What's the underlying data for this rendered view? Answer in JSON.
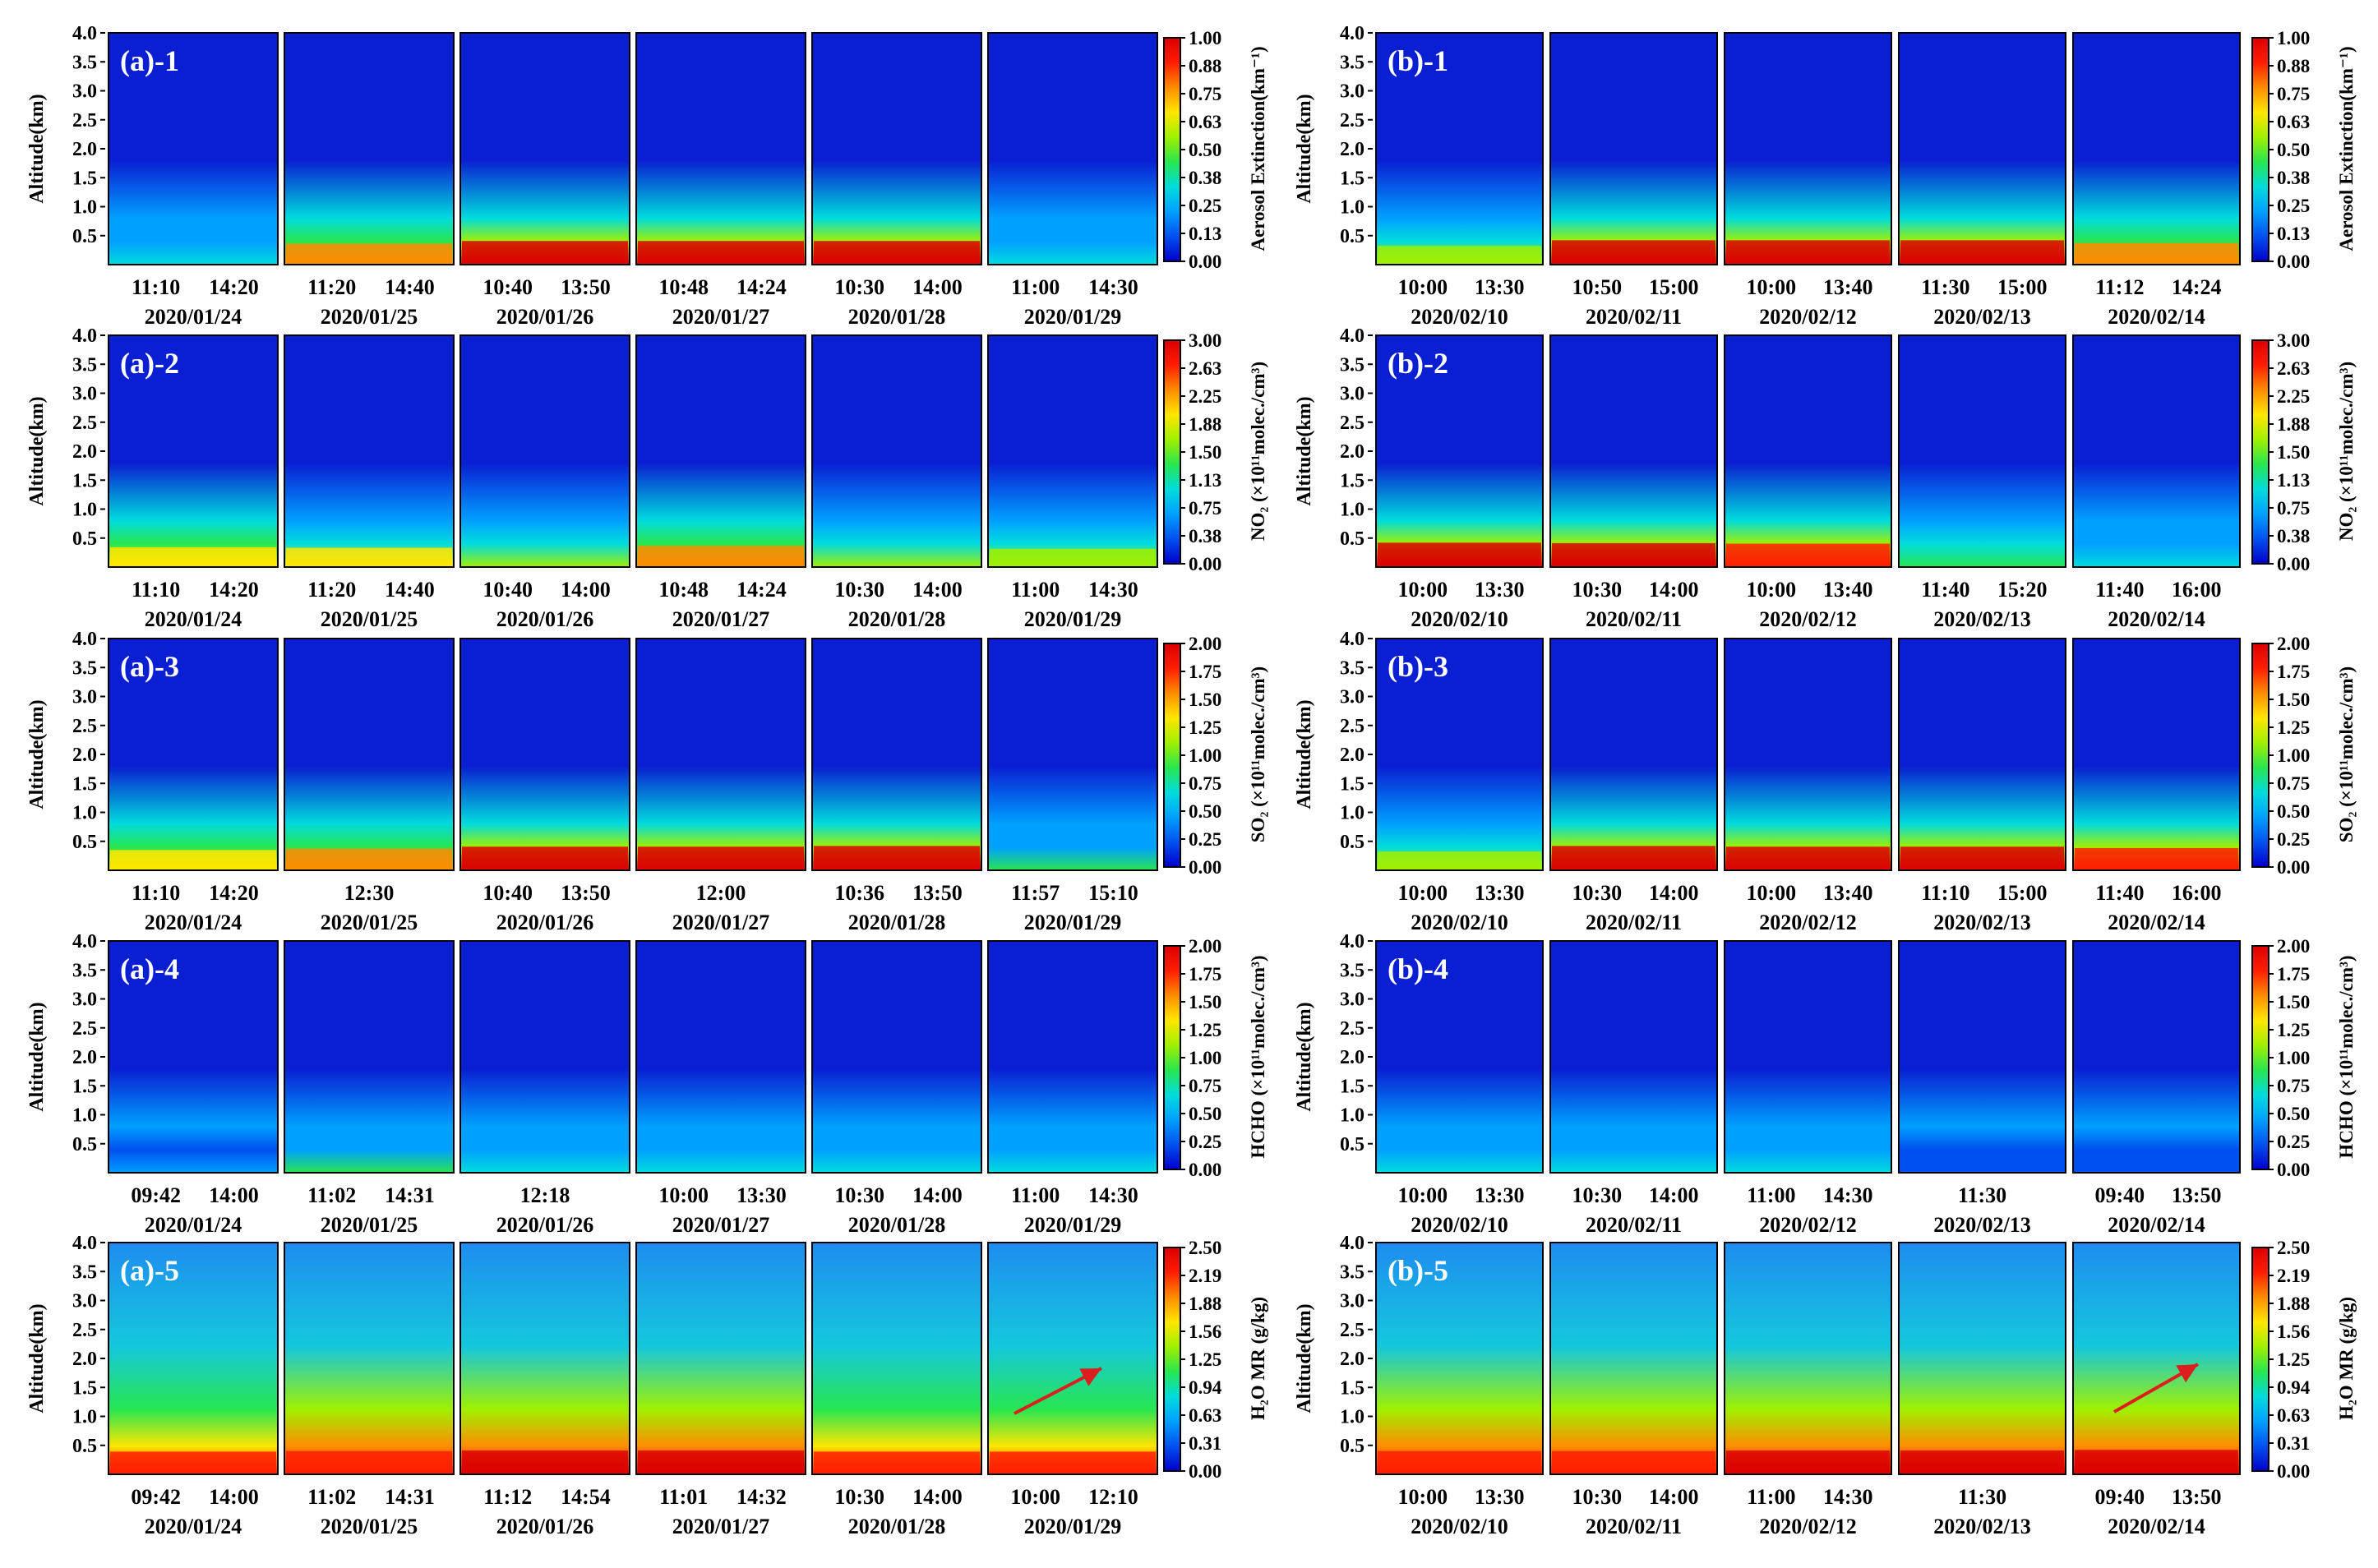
{
  "figure": {
    "y_axis_label": "Altitude(km)",
    "y_ticks": [
      "4.0",
      "3.5",
      "3.0",
      "2.5",
      "2.0",
      "1.5",
      "1.0",
      "0.5"
    ],
    "columns": [
      {
        "id": "a",
        "dates": [
          "2020/01/24",
          "2020/01/25",
          "2020/01/26",
          "2020/01/27",
          "2020/01/28",
          "2020/01/29"
        ],
        "rows": [
          {
            "label": "(a)-1",
            "species": "aerosol",
            "times": [
              [
                "11:10",
                "14:20"
              ],
              [
                "11:20",
                "14:40"
              ],
              [
                "10:40",
                "13:50"
              ],
              [
                "10:48",
                "14:24"
              ],
              [
                "10:30",
                "14:00"
              ],
              [
                "11:00",
                "14:30"
              ]
            ]
          },
          {
            "label": "(a)-2",
            "species": "no2",
            "times": [
              [
                "11:10",
                "14:20"
              ],
              [
                "11:20",
                "14:40"
              ],
              [
                "10:40",
                "14:00"
              ],
              [
                "10:48",
                "14:24"
              ],
              [
                "10:30",
                "14:00"
              ],
              [
                "11:00",
                "14:30"
              ]
            ]
          },
          {
            "label": "(a)-3",
            "species": "so2",
            "times": [
              [
                "11:10",
                "14:20"
              ],
              [
                "12:30"
              ],
              [
                "10:40",
                "13:50"
              ],
              [
                "12:00"
              ],
              [
                "10:36",
                "13:50"
              ],
              [
                "11:57",
                "15:10"
              ]
            ]
          },
          {
            "label": "(a)-4",
            "species": "hcho",
            "times": [
              [
                "09:42",
                "14:00"
              ],
              [
                "11:02",
                "14:31"
              ],
              [
                "12:18"
              ],
              [
                "10:00",
                "13:30"
              ],
              [
                "10:30",
                "14:00"
              ],
              [
                "11:00",
                "14:30"
              ]
            ]
          },
          {
            "label": "(a)-5",
            "species": "h2o",
            "times": [
              [
                "09:42",
                "14:00"
              ],
              [
                "11:02",
                "14:31"
              ],
              [
                "11:12",
                "14:54"
              ],
              [
                "11:01",
                "14:32"
              ],
              [
                "10:30",
                "14:00"
              ],
              [
                "10:00",
                "12:10"
              ]
            ]
          }
        ]
      },
      {
        "id": "b",
        "dates": [
          "2020/02/10",
          "2020/02/11",
          "2020/02/12",
          "2020/02/13",
          "2020/02/14"
        ],
        "rows": [
          {
            "label": "(b)-1",
            "species": "aerosol",
            "times": [
              [
                "10:00",
                "13:30"
              ],
              [
                "10:50",
                "15:00"
              ],
              [
                "10:00",
                "13:40"
              ],
              [
                "11:30",
                "15:00"
              ],
              [
                "11:12",
                "14:24"
              ]
            ]
          },
          {
            "label": "(b)-2",
            "species": "no2",
            "times": [
              [
                "10:00",
                "13:30"
              ],
              [
                "10:30",
                "14:00"
              ],
              [
                "10:00",
                "13:40"
              ],
              [
                "11:40",
                "15:20"
              ],
              [
                "11:40",
                "16:00"
              ]
            ]
          },
          {
            "label": "(b)-3",
            "species": "so2",
            "times": [
              [
                "10:00",
                "13:30"
              ],
              [
                "10:30",
                "14:00"
              ],
              [
                "10:00",
                "13:40"
              ],
              [
                "11:10",
                "15:00"
              ],
              [
                "11:40",
                "16:00"
              ]
            ]
          },
          {
            "label": "(b)-4",
            "species": "hcho",
            "times": [
              [
                "10:00",
                "13:30"
              ],
              [
                "10:30",
                "14:00"
              ],
              [
                "11:00",
                "14:30"
              ],
              [
                "11:30"
              ],
              [
                "09:40",
                "13:50"
              ]
            ]
          },
          {
            "label": "(b)-5",
            "species": "h2o",
            "times": [
              [
                "10:00",
                "13:30"
              ],
              [
                "10:30",
                "14:00"
              ],
              [
                "11:00",
                "14:30"
              ],
              [
                "11:30"
              ],
              [
                "09:40",
                "13:50"
              ]
            ]
          }
        ]
      }
    ]
  },
  "colorbars": {
    "aerosol": {
      "label": "Aerosol Extinction(km⁻¹)",
      "ticks": [
        "1.00",
        "0.88",
        "0.75",
        "0.63",
        "0.50",
        "0.38",
        "0.25",
        "0.13",
        "0.00"
      ]
    },
    "no2": {
      "label": "NO₂ (×10¹¹molec./cm³)",
      "ticks": [
        "3.00",
        "2.63",
        "2.25",
        "1.88",
        "1.50",
        "1.13",
        "0.75",
        "0.38",
        "0.00"
      ]
    },
    "so2": {
      "label": "SO₂ (×10¹¹molec./cm³)",
      "ticks": [
        "2.00",
        "1.75",
        "1.50",
        "1.25",
        "1.00",
        "0.75",
        "0.50",
        "0.25",
        "0.00"
      ]
    },
    "hcho": {
      "label": "HCHO (×10¹¹molec./cm³)",
      "ticks": [
        "2.00",
        "1.75",
        "1.50",
        "1.25",
        "1.00",
        "0.75",
        "0.50",
        "0.25",
        "0.00"
      ]
    },
    "h2o": {
      "label": "H₂O MR (g/kg)",
      "ticks": [
        "2.50",
        "2.19",
        "1.88",
        "1.56",
        "1.25",
        "0.94",
        "0.63",
        "0.31",
        "0.00"
      ]
    }
  },
  "colors": {
    "scale": [
      "#0000cd",
      "#0050f0",
      "#00a0ff",
      "#00dcdc",
      "#28e650",
      "#a0f000",
      "#ffe600",
      "#ff8c00",
      "#ff1e00",
      "#dc0000"
    ],
    "background_low": "#0a1ed2",
    "background_h2o": "#19a0f0",
    "arrow": "#dc1e1e"
  },
  "chart_data": [
    {
      "type": "heatmap",
      "panel": "(a)-1",
      "ylim": [
        0,
        4
      ],
      "x": "time of day",
      "y": "Altitude(km)",
      "z": "Aerosol Extinction(km⁻¹)",
      "zlim": [
        0,
        1.0
      ],
      "days": [
        {
          "date": "2020/01/24",
          "surface_value": 0.3
        },
        {
          "date": "2020/01/25",
          "surface_value": 0.75
        },
        {
          "date": "2020/01/26",
          "surface_value": 0.95
        },
        {
          "date": "2020/01/27",
          "surface_value": 0.95
        },
        {
          "date": "2020/01/28",
          "surface_value": 0.95
        },
        {
          "date": "2020/01/29",
          "surface_value": 0.3
        }
      ]
    },
    {
      "type": "heatmap",
      "panel": "(a)-2",
      "ylim": [
        0,
        4
      ],
      "z": "NO₂ (×10¹¹molec./cm³)",
      "zlim": [
        0,
        3.0
      ],
      "days": [
        {
          "date": "2020/01/24",
          "surface_value": 2.0
        },
        {
          "date": "2020/01/25",
          "surface_value": 1.9
        },
        {
          "date": "2020/01/26",
          "surface_value": 1.5
        },
        {
          "date": "2020/01/27",
          "surface_value": 2.3
        },
        {
          "date": "2020/01/28",
          "surface_value": 1.5
        },
        {
          "date": "2020/01/29",
          "surface_value": 1.7
        }
      ]
    },
    {
      "type": "heatmap",
      "panel": "(a)-3",
      "ylim": [
        0,
        4
      ],
      "z": "SO₂ (×10¹¹molec./cm³)",
      "zlim": [
        0,
        2.0
      ],
      "days": [
        {
          "date": "2020/01/24",
          "surface_value": 1.4
        },
        {
          "date": "2020/01/25",
          "surface_value": 1.6
        },
        {
          "date": "2020/01/26",
          "surface_value": 1.9
        },
        {
          "date": "2020/01/27",
          "surface_value": 1.9
        },
        {
          "date": "2020/01/28",
          "surface_value": 2.0
        },
        {
          "date": "2020/01/29",
          "surface_value": 0.8
        }
      ]
    },
    {
      "type": "heatmap",
      "panel": "(a)-4",
      "ylim": [
        0,
        4
      ],
      "z": "HCHO (×10¹¹molec./cm³)",
      "zlim": [
        0,
        2.0
      ],
      "days": [
        {
          "date": "2020/01/24",
          "surface_value": 0.5
        },
        {
          "date": "2020/01/25",
          "surface_value": 0.8
        },
        {
          "date": "2020/01/26",
          "surface_value": 0.6
        },
        {
          "date": "2020/01/27",
          "surface_value": 0.7
        },
        {
          "date": "2020/01/28",
          "surface_value": 0.6
        },
        {
          "date": "2020/01/29",
          "surface_value": 0.6
        }
      ]
    },
    {
      "type": "heatmap",
      "panel": "(a)-5",
      "ylim": [
        0,
        4
      ],
      "z": "H₂O MR (g/kg)",
      "zlim": [
        0,
        2.5
      ],
      "days": [
        {
          "date": "2020/01/24",
          "surface_value": 2.2
        },
        {
          "date": "2020/01/25",
          "surface_value": 2.3
        },
        {
          "date": "2020/01/26",
          "surface_value": 2.4
        },
        {
          "date": "2020/01/27",
          "surface_value": 2.4
        },
        {
          "date": "2020/01/28",
          "surface_value": 2.2
        },
        {
          "date": "2020/01/29",
          "surface_value": 2.2
        }
      ]
    },
    {
      "type": "heatmap",
      "panel": "(b)-1",
      "ylim": [
        0,
        4
      ],
      "z": "Aerosol Extinction(km⁻¹)",
      "zlim": [
        0,
        1.0
      ],
      "days": [
        {
          "date": "2020/02/10",
          "surface_value": 0.6
        },
        {
          "date": "2020/02/11",
          "surface_value": 1.0
        },
        {
          "date": "2020/02/12",
          "surface_value": 1.0
        },
        {
          "date": "2020/02/13",
          "surface_value": 1.0
        },
        {
          "date": "2020/02/14",
          "surface_value": 0.8
        }
      ]
    },
    {
      "type": "heatmap",
      "panel": "(b)-2",
      "ylim": [
        0,
        4
      ],
      "z": "NO₂ (×10¹¹molec./cm³)",
      "zlim": [
        0,
        3.0
      ],
      "days": [
        {
          "date": "2020/02/10",
          "surface_value": 3.0
        },
        {
          "date": "2020/02/11",
          "surface_value": 2.9
        },
        {
          "date": "2020/02/12",
          "surface_value": 2.8
        },
        {
          "date": "2020/02/13",
          "surface_value": 1.4
        },
        {
          "date": "2020/02/14",
          "surface_value": 1.0
        }
      ]
    },
    {
      "type": "heatmap",
      "panel": "(b)-3",
      "ylim": [
        0,
        4
      ],
      "z": "SO₂ (×10¹¹molec./cm³)",
      "zlim": [
        0,
        2.0
      ],
      "days": [
        {
          "date": "2020/02/10",
          "surface_value": 1.2
        },
        {
          "date": "2020/02/11",
          "surface_value": 2.0
        },
        {
          "date": "2020/02/12",
          "surface_value": 1.9
        },
        {
          "date": "2020/02/13",
          "surface_value": 1.9
        },
        {
          "date": "2020/02/14",
          "surface_value": 1.7
        }
      ]
    },
    {
      "type": "heatmap",
      "panel": "(b)-4",
      "ylim": [
        0,
        4
      ],
      "z": "HCHO (×10¹¹molec./cm³)",
      "zlim": [
        0,
        2.0
      ],
      "days": [
        {
          "date": "2020/02/10",
          "surface_value": 0.6
        },
        {
          "date": "2020/02/11",
          "surface_value": 0.7
        },
        {
          "date": "2020/02/12",
          "surface_value": 0.7
        },
        {
          "date": "2020/02/13",
          "surface_value": 0.3
        },
        {
          "date": "2020/02/14",
          "surface_value": 0.3
        }
      ]
    },
    {
      "type": "heatmap",
      "panel": "(b)-5",
      "ylim": [
        0,
        4
      ],
      "z": "H₂O MR (g/kg)",
      "zlim": [
        0,
        2.5
      ],
      "days": [
        {
          "date": "2020/02/10",
          "surface_value": 2.3
        },
        {
          "date": "2020/02/11",
          "surface_value": 2.3
        },
        {
          "date": "2020/02/12",
          "surface_value": 2.4
        },
        {
          "date": "2020/02/13",
          "surface_value": 2.4
        },
        {
          "date": "2020/02/14",
          "surface_value": 2.5
        }
      ]
    }
  ]
}
